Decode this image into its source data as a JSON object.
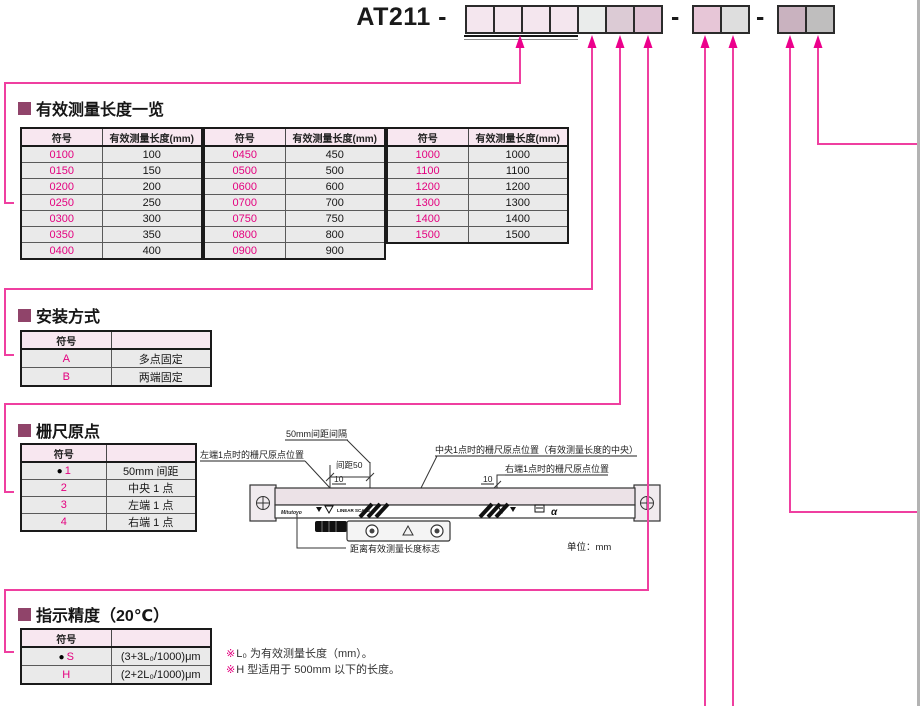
{
  "colors": {
    "accent_pink": "#e4007f",
    "connector_line": "#ef3fa0",
    "arrow_head": "#ec008c",
    "section_marker": "#90446a",
    "table_header_bg": "#f8e7f0",
    "table_row_bg": "#eaeaea",
    "page_edge_gray": "#b3b3b3"
  },
  "glyphs": {
    "dot": "●",
    "refmark": "※"
  },
  "order_code": {
    "model": "AT211 -",
    "separator": "-",
    "group1_box_colors": [
      "#f4e6ee",
      "#f4e6ee",
      "#f4e6ee",
      "#f4e6ee",
      "#eaeceb",
      "#dccbd5",
      "#dfc2d3"
    ],
    "group2_box_colors": [
      "#e7c6d7",
      "#dedede"
    ],
    "group3_box_colors": [
      "#c9b2bf",
      "#bfbebe"
    ]
  },
  "sections": {
    "length": {
      "title": "有效测量长度一览",
      "col_headers": [
        "符号",
        "有效测量长度(mm)"
      ],
      "tables": [
        {
          "rows": [
            [
              "0100",
              "100"
            ],
            [
              "0150",
              "150"
            ],
            [
              "0200",
              "200"
            ],
            [
              "0250",
              "250"
            ],
            [
              "0300",
              "300"
            ],
            [
              "0350",
              "350"
            ],
            [
              "0400",
              "400"
            ]
          ]
        },
        {
          "rows": [
            [
              "0450",
              "450"
            ],
            [
              "0500",
              "500"
            ],
            [
              "0600",
              "600"
            ],
            [
              "0700",
              "700"
            ],
            [
              "0750",
              "750"
            ],
            [
              "0800",
              "800"
            ],
            [
              "0900",
              "900"
            ]
          ]
        },
        {
          "rows": [
            [
              "1000",
              "1000"
            ],
            [
              "1100",
              "1100"
            ],
            [
              "1200",
              "1200"
            ],
            [
              "1300",
              "1300"
            ],
            [
              "1400",
              "1400"
            ],
            [
              "1500",
              "1500"
            ]
          ]
        }
      ]
    },
    "mounting": {
      "title": "安装方式",
      "col_headers": [
        "符号",
        ""
      ],
      "rows": [
        {
          "sym": "A",
          "desc": "多点固定"
        },
        {
          "sym": "B",
          "desc": "两端固定"
        }
      ]
    },
    "origin": {
      "title": "栅尺原点",
      "col_headers": [
        "符号",
        ""
      ],
      "rows": [
        {
          "sym": "1",
          "dot": true,
          "desc": "50mm 间距"
        },
        {
          "sym": "2",
          "desc": "中央 1 点"
        },
        {
          "sym": "3",
          "desc": "左端 1 点"
        },
        {
          "sym": "4",
          "desc": "右端 1 点"
        }
      ]
    },
    "accuracy": {
      "title": "指示精度（20℃）",
      "col_headers": [
        "符号",
        ""
      ],
      "rows": [
        {
          "sym": "S",
          "dot": true,
          "desc": "(3+3L₀/1000)μm"
        },
        {
          "sym": "H",
          "desc": "(2+2L₀/1000)μm"
        }
      ],
      "notes": [
        "L₀ 为有效测量长度（mm）。",
        "H 型适用于 500mm 以下的长度。"
      ]
    }
  },
  "diagram": {
    "labels": {
      "pitch_interval": "50mm间距间隔",
      "left_origin": "左端1点时的栅尺原点位置",
      "pitch50": "间距50",
      "dim10_left": "10",
      "dim10_right": "10",
      "center_origin": "中央1点时的栅尺原点位置（有效测量长度的中央）",
      "right_origin": "右端1点时的栅尺原点位置",
      "effective_mark": "距离有效测量长度标志",
      "unit": "单位：mm",
      "logo": "Mitutoyo",
      "scale_text": "LINEAR SCALE",
      "alpha": "α"
    }
  }
}
